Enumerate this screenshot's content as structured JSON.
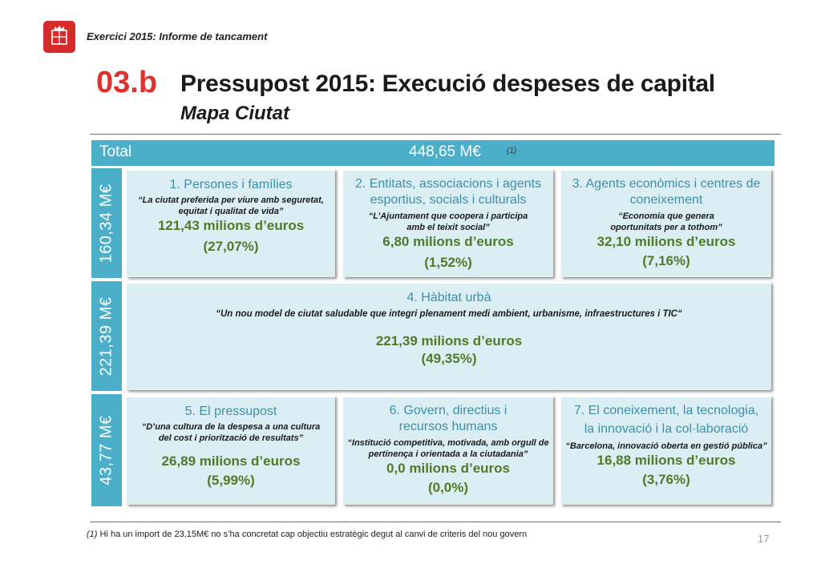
{
  "header": {
    "report_label": "Exercici 2015: Informe de tancament",
    "section_number": "03.b",
    "title": "Pressupost 2015: Execució despeses de capital",
    "subtitle": "Mapa Ciutat"
  },
  "total": {
    "label": "Total",
    "value": "448,65 M€",
    "note_ref": "(1)"
  },
  "groups": [
    {
      "label": "160,34 M€"
    },
    {
      "label": "221,39 M€"
    },
    {
      "label": "43,77 M€"
    }
  ],
  "cards": [
    {
      "heading": [
        "1. Persones i famílies"
      ],
      "quote": [
        "“La ciutat preferida per viure amb seguretat,",
        "equitat i qualitat de vida”"
      ],
      "amount": "121,43 milions d’euros",
      "percent": "(27,07%)"
    },
    {
      "heading": [
        "2. Entitats, associacions i agents",
        "esportius, socials i culturals"
      ],
      "quote": [
        "“L’Ajuntament que coopera i participa",
        "amb el teixit social”"
      ],
      "amount": "6,80 milions d’euros",
      "percent": "(1,52%)"
    },
    {
      "heading": [
        "3. Agents econòmics i centres de",
        "coneixement"
      ],
      "quote": [
        "“Economia que genera",
        "oportunitats per a tothom”"
      ],
      "amount": "32,10 milions d’euros",
      "percent": "(7,16%)"
    },
    {
      "heading": [
        "4. Hàbitat urbà"
      ],
      "quote": [
        "“Un nou model de ciutat saludable que integri plenament medi ambient, urbanisme, infraestructures i TIC“"
      ],
      "amount": "221,39 milions d’euros",
      "percent": "(49,35%)"
    },
    {
      "heading": [
        "5. El pressupost"
      ],
      "quote": [
        "“D’una cultura de la despesa a una cultura",
        "del cost i priorització de resultats”"
      ],
      "amount": "26,89 milions d’euros",
      "percent": "(5,99%)"
    },
    {
      "heading": [
        "6. Govern, directius i",
        "recursos humans"
      ],
      "quote": [
        "“Institució competitiva, motivada, amb orgull de",
        "pertinença i orientada a la ciutadania”"
      ],
      "amount": "0,0 milions d’euros",
      "percent": "(0,0%)"
    },
    {
      "heading": [
        "7. El coneixement, la tecnologia,",
        "la innovació i la col·laboració"
      ],
      "quote": [
        "“Barcelona, innovació oberta en gestió pública”"
      ],
      "amount": "16,88 milions d’euros",
      "percent": "(3,76%)"
    }
  ],
  "footer": {
    "footnote_ref": "(1)",
    "footnote_text": "Hi ha un import de 23,15M€ no s’ha concretat cap objectiu estratègic degut al canvi de criteris del nou govern",
    "page_number": "17"
  },
  "colors": {
    "accent_red": "#e0312b",
    "bar_teal": "#4bafc9",
    "card_bg": "#daeef4",
    "heading_teal": "#3d8fa8",
    "amount_green": "#4f7a28"
  }
}
